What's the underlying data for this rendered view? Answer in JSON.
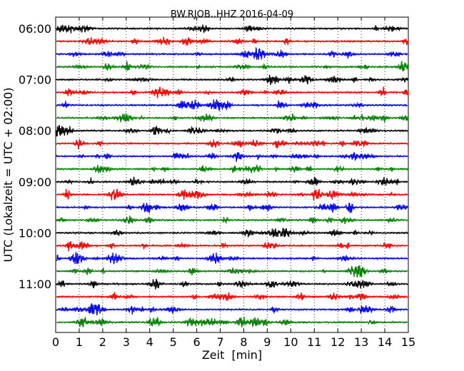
{
  "chart_data": {
    "type": "line",
    "title": "BW.RJOB..HHZ 2016-04-09",
    "xlabel": "Zeit  [min]",
    "ylabel": "UTC (Lokalzeit = UTC + 02:00)",
    "xlim": [
      0,
      15
    ],
    "x_ticks": [
      "0",
      "1",
      "2",
      "3",
      "4",
      "5",
      "6",
      "7",
      "8",
      "9",
      "10",
      "11",
      "12",
      "13",
      "14",
      "15"
    ],
    "y_tick_labels": [
      "06:00",
      "07:00",
      "08:00",
      "09:00",
      "10:00",
      "11:00"
    ],
    "grid": "vertical dotted lines at each minute",
    "colors": [
      "#000000",
      "#ff0000",
      "#0000ff",
      "#008000"
    ],
    "traces": [
      {
        "start": "06:00",
        "color": "#000000"
      },
      {
        "start": "06:15",
        "color": "#ff0000"
      },
      {
        "start": "06:30",
        "color": "#0000ff"
      },
      {
        "start": "06:45",
        "color": "#008000"
      },
      {
        "start": "07:00",
        "color": "#000000"
      },
      {
        "start": "07:15",
        "color": "#ff0000"
      },
      {
        "start": "07:30",
        "color": "#0000ff"
      },
      {
        "start": "07:45",
        "color": "#008000"
      },
      {
        "start": "08:00",
        "color": "#000000"
      },
      {
        "start": "08:15",
        "color": "#ff0000"
      },
      {
        "start": "08:30",
        "color": "#0000ff"
      },
      {
        "start": "08:45",
        "color": "#008000"
      },
      {
        "start": "09:00",
        "color": "#000000"
      },
      {
        "start": "09:15",
        "color": "#ff0000"
      },
      {
        "start": "09:30",
        "color": "#0000ff"
      },
      {
        "start": "09:45",
        "color": "#008000"
      },
      {
        "start": "10:00",
        "color": "#000000"
      },
      {
        "start": "10:15",
        "color": "#ff0000"
      },
      {
        "start": "10:30",
        "color": "#0000ff"
      },
      {
        "start": "10:45",
        "color": "#008000"
      },
      {
        "start": "11:00",
        "color": "#000000"
      },
      {
        "start": "11:15",
        "color": "#ff0000"
      },
      {
        "start": "11:30",
        "color": "#0000ff"
      },
      {
        "start": "11:45",
        "color": "#008000"
      }
    ]
  }
}
